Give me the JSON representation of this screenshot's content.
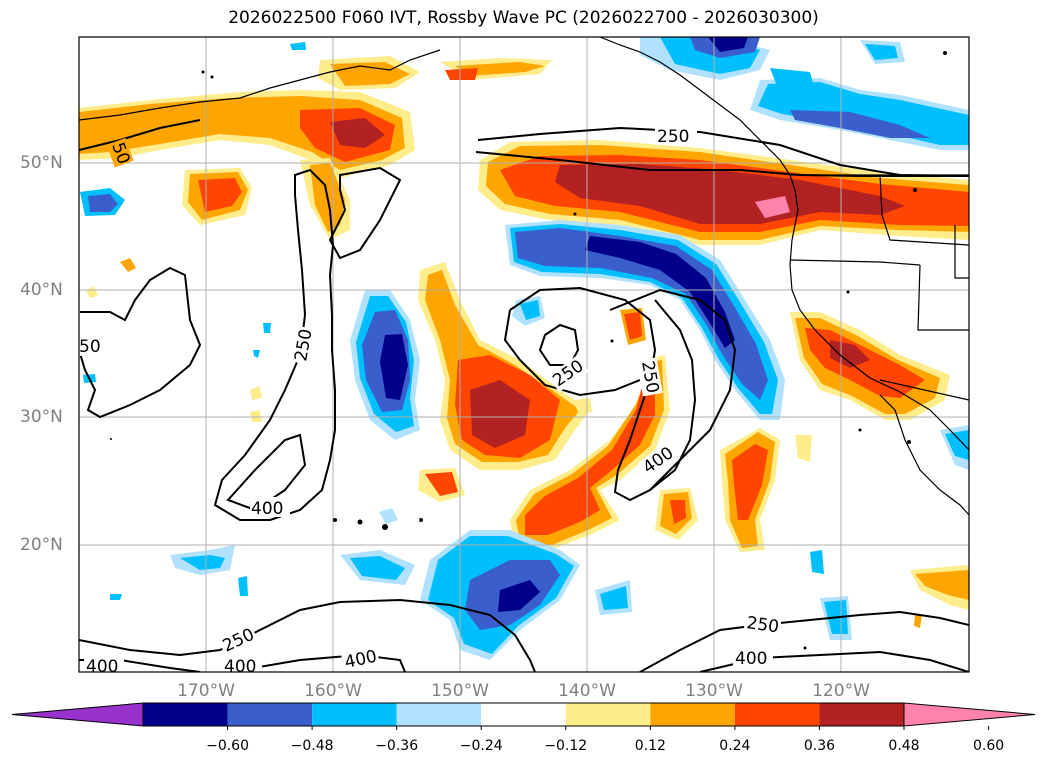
{
  "title": "2026022500 F060 IVT, Rossby Wave PC (2026022700 - 2026030300)",
  "lat_labels": [
    "50°N",
    "40°N",
    "30°N",
    "20°N"
  ],
  "lon_labels": [
    "170°W",
    "160°W",
    "150°W",
    "140°W",
    "130°W",
    "120°W"
  ],
  "contour_labels": {
    "c1": "250",
    "c2": "50",
    "c3": "250",
    "c4": "50",
    "c5": "250",
    "c6": "250",
    "c7": "400",
    "c8": "400",
    "c9": "250",
    "c10": "400",
    "c11": "400",
    "c12": "250",
    "c13": "400",
    "c14": "400"
  },
  "colorbar": {
    "ticks": [
      "−0.60",
      "−0.48",
      "−0.36",
      "−0.24",
      "−0.12",
      "0.12",
      "0.24",
      "0.36",
      "0.48",
      "0.60"
    ],
    "colors": [
      "#9932cc",
      "#00008b",
      "#3a5fcd",
      "#00bfff",
      "#b0e2ff",
      "#ffffff",
      "#ffec8b",
      "#ffa500",
      "#ff4500",
      "#b22222",
      "#ff82ab"
    ]
  },
  "colors": {
    "neg_strong": "#00008b",
    "neg_mod": "#3a5fcd",
    "neg_light": "#00bfff",
    "neg_faint": "#b0e2ff",
    "pos_faint": "#ffec8b",
    "pos_light": "#ffa500",
    "pos_mod": "#ff4500",
    "pos_strong": "#b22222",
    "pos_max": "#ff82ab"
  }
}
